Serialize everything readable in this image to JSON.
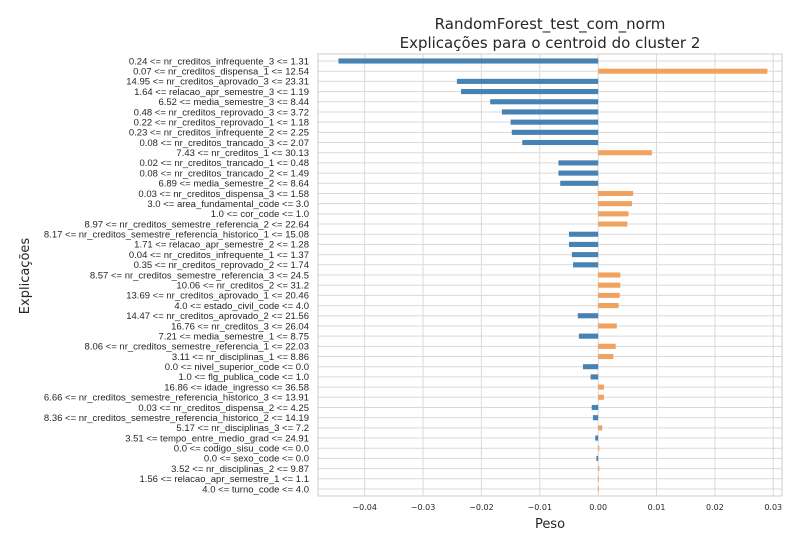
{
  "chart_data": {
    "type": "bar",
    "orientation": "horizontal",
    "title": "RandomForest_test_com_norm",
    "subtitle": "Explicações para o centroid do cluster 2",
    "xlabel": "Peso",
    "ylabel": "Explicações",
    "xlim": [
      -0.048,
      0.0315
    ],
    "xticks": [
      -0.04,
      -0.03,
      -0.02,
      -0.01,
      0.0,
      0.01,
      0.02,
      0.03
    ],
    "xtick_labels": [
      "−0.04",
      "−0.03",
      "−0.02",
      "−0.01",
      "0.00",
      "0.01",
      "0.02",
      "0.03"
    ],
    "grid": true,
    "colors": {
      "positive": "#f0a35e",
      "negative": "#4682b4"
    },
    "categories": [
      "0.24 <= nr_creditos_infrequente_3 <= 1.31",
      "0.07 <= nr_creditos_dispensa_1 <= 12.54",
      "14.95 <= nr_creditos_aprovado_3 <= 23.31",
      "1.64 <= relacao_apr_semestre_3 <= 1.19",
      "6.52 <= media_semestre_3 <= 8.44",
      "0.48 <= nr_creditos_reprovado_3 <= 3.72",
      "0.22 <= nr_creditos_reprovado_1 <= 1.18",
      "0.23 <= nr_creditos_infrequente_2 <= 2.25",
      "0.08 <= nr_creditos_trancado_3 <= 2.07",
      "7.43 <= nr_creditos_1 <= 30.13",
      "0.02 <= nr_creditos_trancado_1 <= 0.48",
      "0.08 <= nr_creditos_trancado_2 <= 1.49",
      "6.89 <= media_semestre_2 <= 8.64",
      "0.03 <= nr_creditos_dispensa_3 <= 1.58",
      "3.0 <= area_fundamental_code <= 3.0",
      "1.0 <= cor_code <= 1.0",
      "8.97 <= nr_creditos_semestre_referencia_2 <= 22.64",
      "8.17 <= nr_creditos_semestre_referencia_historico_1 <= 15.08",
      "1.71 <= relacao_apr_semestre_2 <= 1.28",
      "0.04 <= nr_creditos_infrequente_1 <= 1.37",
      "0.35 <= nr_creditos_reprovado_2 <= 1.74",
      "8.57 <= nr_creditos_semestre_referencia_3 <= 24.5",
      "10.06 <= nr_creditos_2 <= 31.2",
      "13.69 <= nr_creditos_aprovado_1 <= 20.46",
      "4.0 <= estado_civil_code <= 4.0",
      "14.47 <= nr_creditos_aprovado_2 <= 21.56",
      "16.76 <= nr_creditos_3 <= 26.04",
      "7.21 <= media_semestre_1 <= 8.75",
      "8.06 <= nr_creditos_semestre_referencia_1 <= 22.03",
      "3.11 <= nr_disciplinas_1 <= 8.86",
      "0.0 <= nivel_superior_code <= 0.0",
      "1.0 <= flg_publica_code <= 1.0",
      "16.86 <= idade_ingresso <= 36.58",
      "6.66 <= nr_creditos_semestre_referencia_historico_3 <= 13.91",
      "0.03 <= nr_creditos_dispensa_2 <= 4.25",
      "8.36 <= nr_creditos_semestre_referencia_historico_2 <= 14.19",
      "5.17 <= nr_disciplinas_3 <= 7.2",
      "3.51 <= tempo_entre_medio_grad <= 24.91",
      "0.0 <= codigo_sisu_code <= 0.0",
      "0.0 <= sexo_code <= 0.0",
      "3.52 <= nr_disciplinas_2 <= 9.87",
      "1.56 <= relacao_apr_semestre_1 <= 1.1",
      "4.0 <= turno_code <= 4.0"
    ],
    "values": [
      -0.0445,
      0.029,
      -0.0242,
      -0.0235,
      -0.0185,
      -0.0165,
      -0.015,
      -0.0148,
      -0.013,
      0.0092,
      -0.0068,
      -0.0068,
      -0.0065,
      0.006,
      0.0058,
      0.0052,
      0.005,
      -0.005,
      -0.005,
      -0.0045,
      -0.0043,
      0.0038,
      0.0038,
      0.0037,
      0.0035,
      -0.0035,
      0.0032,
      -0.0033,
      0.003,
      0.0026,
      -0.0026,
      -0.0013,
      0.001,
      0.001,
      -0.0011,
      -0.0009,
      0.0007,
      -0.0005,
      0.0002,
      -0.0003,
      0.0002,
      0.0001,
      0.0001
    ]
  }
}
